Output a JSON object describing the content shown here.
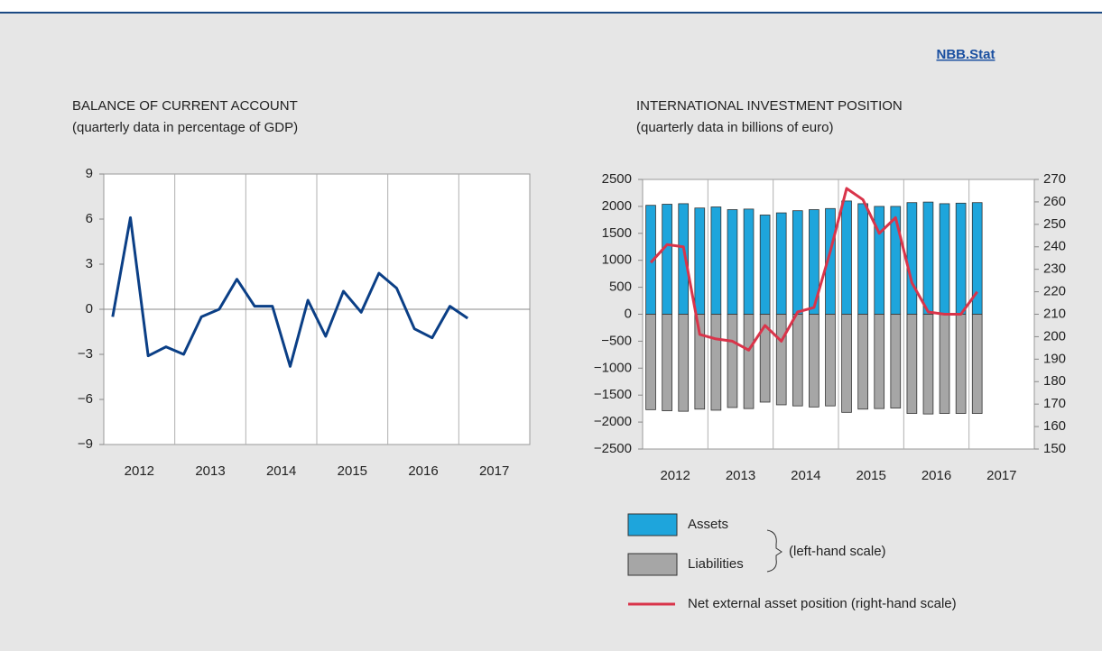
{
  "link": "NBB.Stat",
  "chart_data": [
    {
      "type": "line",
      "title": "BALANCE OF CURRENT ACCOUNT",
      "subtitle": "(quarterly data in percentage of GDP)",
      "categories": [
        null,
        null,
        "2012",
        null,
        null,
        null,
        "2013",
        null,
        null,
        null,
        "2014",
        null,
        null,
        null,
        "2015",
        null,
        null,
        null,
        "2016",
        null,
        null,
        null,
        "2017",
        null
      ],
      "values": [
        -0.5,
        6.1,
        -3.1,
        -2.5,
        -3.0,
        -0.5,
        0.0,
        2.0,
        0.2,
        0.2,
        -3.8,
        0.6,
        -1.8,
        1.2,
        -0.2,
        2.4,
        1.4,
        -1.3,
        -1.9,
        0.2,
        -0.6,
        null,
        null,
        null
      ],
      "color": "#0b3f86",
      "ylim": [
        -9,
        9
      ],
      "yticks": [
        {
          "value": -9,
          "label": "−9"
        },
        {
          "value": -6,
          "label": "−6"
        },
        {
          "value": -3,
          "label": "−3"
        },
        0,
        3,
        6,
        9
      ]
    },
    {
      "type": "bar",
      "title": "INTERNATIONAL INVESTMENT POSITION",
      "subtitle": "(quarterly data in billions of euro)",
      "categories": [
        null,
        null,
        "2012",
        null,
        null,
        null,
        "2013",
        null,
        null,
        null,
        "2014",
        null,
        null,
        null,
        "2015",
        null,
        null,
        null,
        "2016",
        null,
        null,
        null,
        "2017",
        null
      ],
      "series": [
        {
          "name": "Assets",
          "color": "#1ea5dc",
          "values": [
            2020,
            2040,
            2050,
            1970,
            1990,
            1940,
            1950,
            1840,
            1880,
            1920,
            1940,
            1960,
            2100,
            2050,
            2000,
            2000,
            2070,
            2080,
            2050,
            2060,
            2070,
            null,
            null,
            null
          ]
        },
        {
          "name": "Liabilities",
          "color": "#a6a6a6",
          "values": [
            -1770,
            -1790,
            -1800,
            -1760,
            -1780,
            -1730,
            -1750,
            -1630,
            -1680,
            -1700,
            -1720,
            -1700,
            -1820,
            -1760,
            -1750,
            -1740,
            -1840,
            -1850,
            -1840,
            -1840,
            -1840,
            null,
            null,
            null
          ]
        },
        {
          "name": "Net external asset position (right-hand scale)",
          "color": "#d9344a",
          "type": "line",
          "axis": "y2",
          "values": [
            233,
            241,
            240,
            201,
            199,
            198,
            194,
            205,
            198,
            211,
            213,
            238,
            266,
            261,
            246,
            253,
            224,
            211,
            210,
            210,
            220,
            null,
            null,
            null
          ]
        }
      ],
      "legend_note": "(left-hand scale)",
      "ylim": [
        -2500,
        2500
      ],
      "yticks": [
        {
          "value": -2500,
          "label": "−2500"
        },
        {
          "value": -2000,
          "label": "−2000"
        },
        {
          "value": -1500,
          "label": "−1500"
        },
        {
          "value": -1000,
          "label": "−1000"
        },
        {
          "value": -500,
          "label": "−500"
        },
        0,
        500,
        1000,
        1500,
        2000,
        2500
      ],
      "y2lim": [
        150,
        270
      ],
      "y2ticks": [
        150,
        160,
        170,
        180,
        190,
        200,
        210,
        220,
        230,
        240,
        250,
        260,
        270
      ]
    }
  ]
}
